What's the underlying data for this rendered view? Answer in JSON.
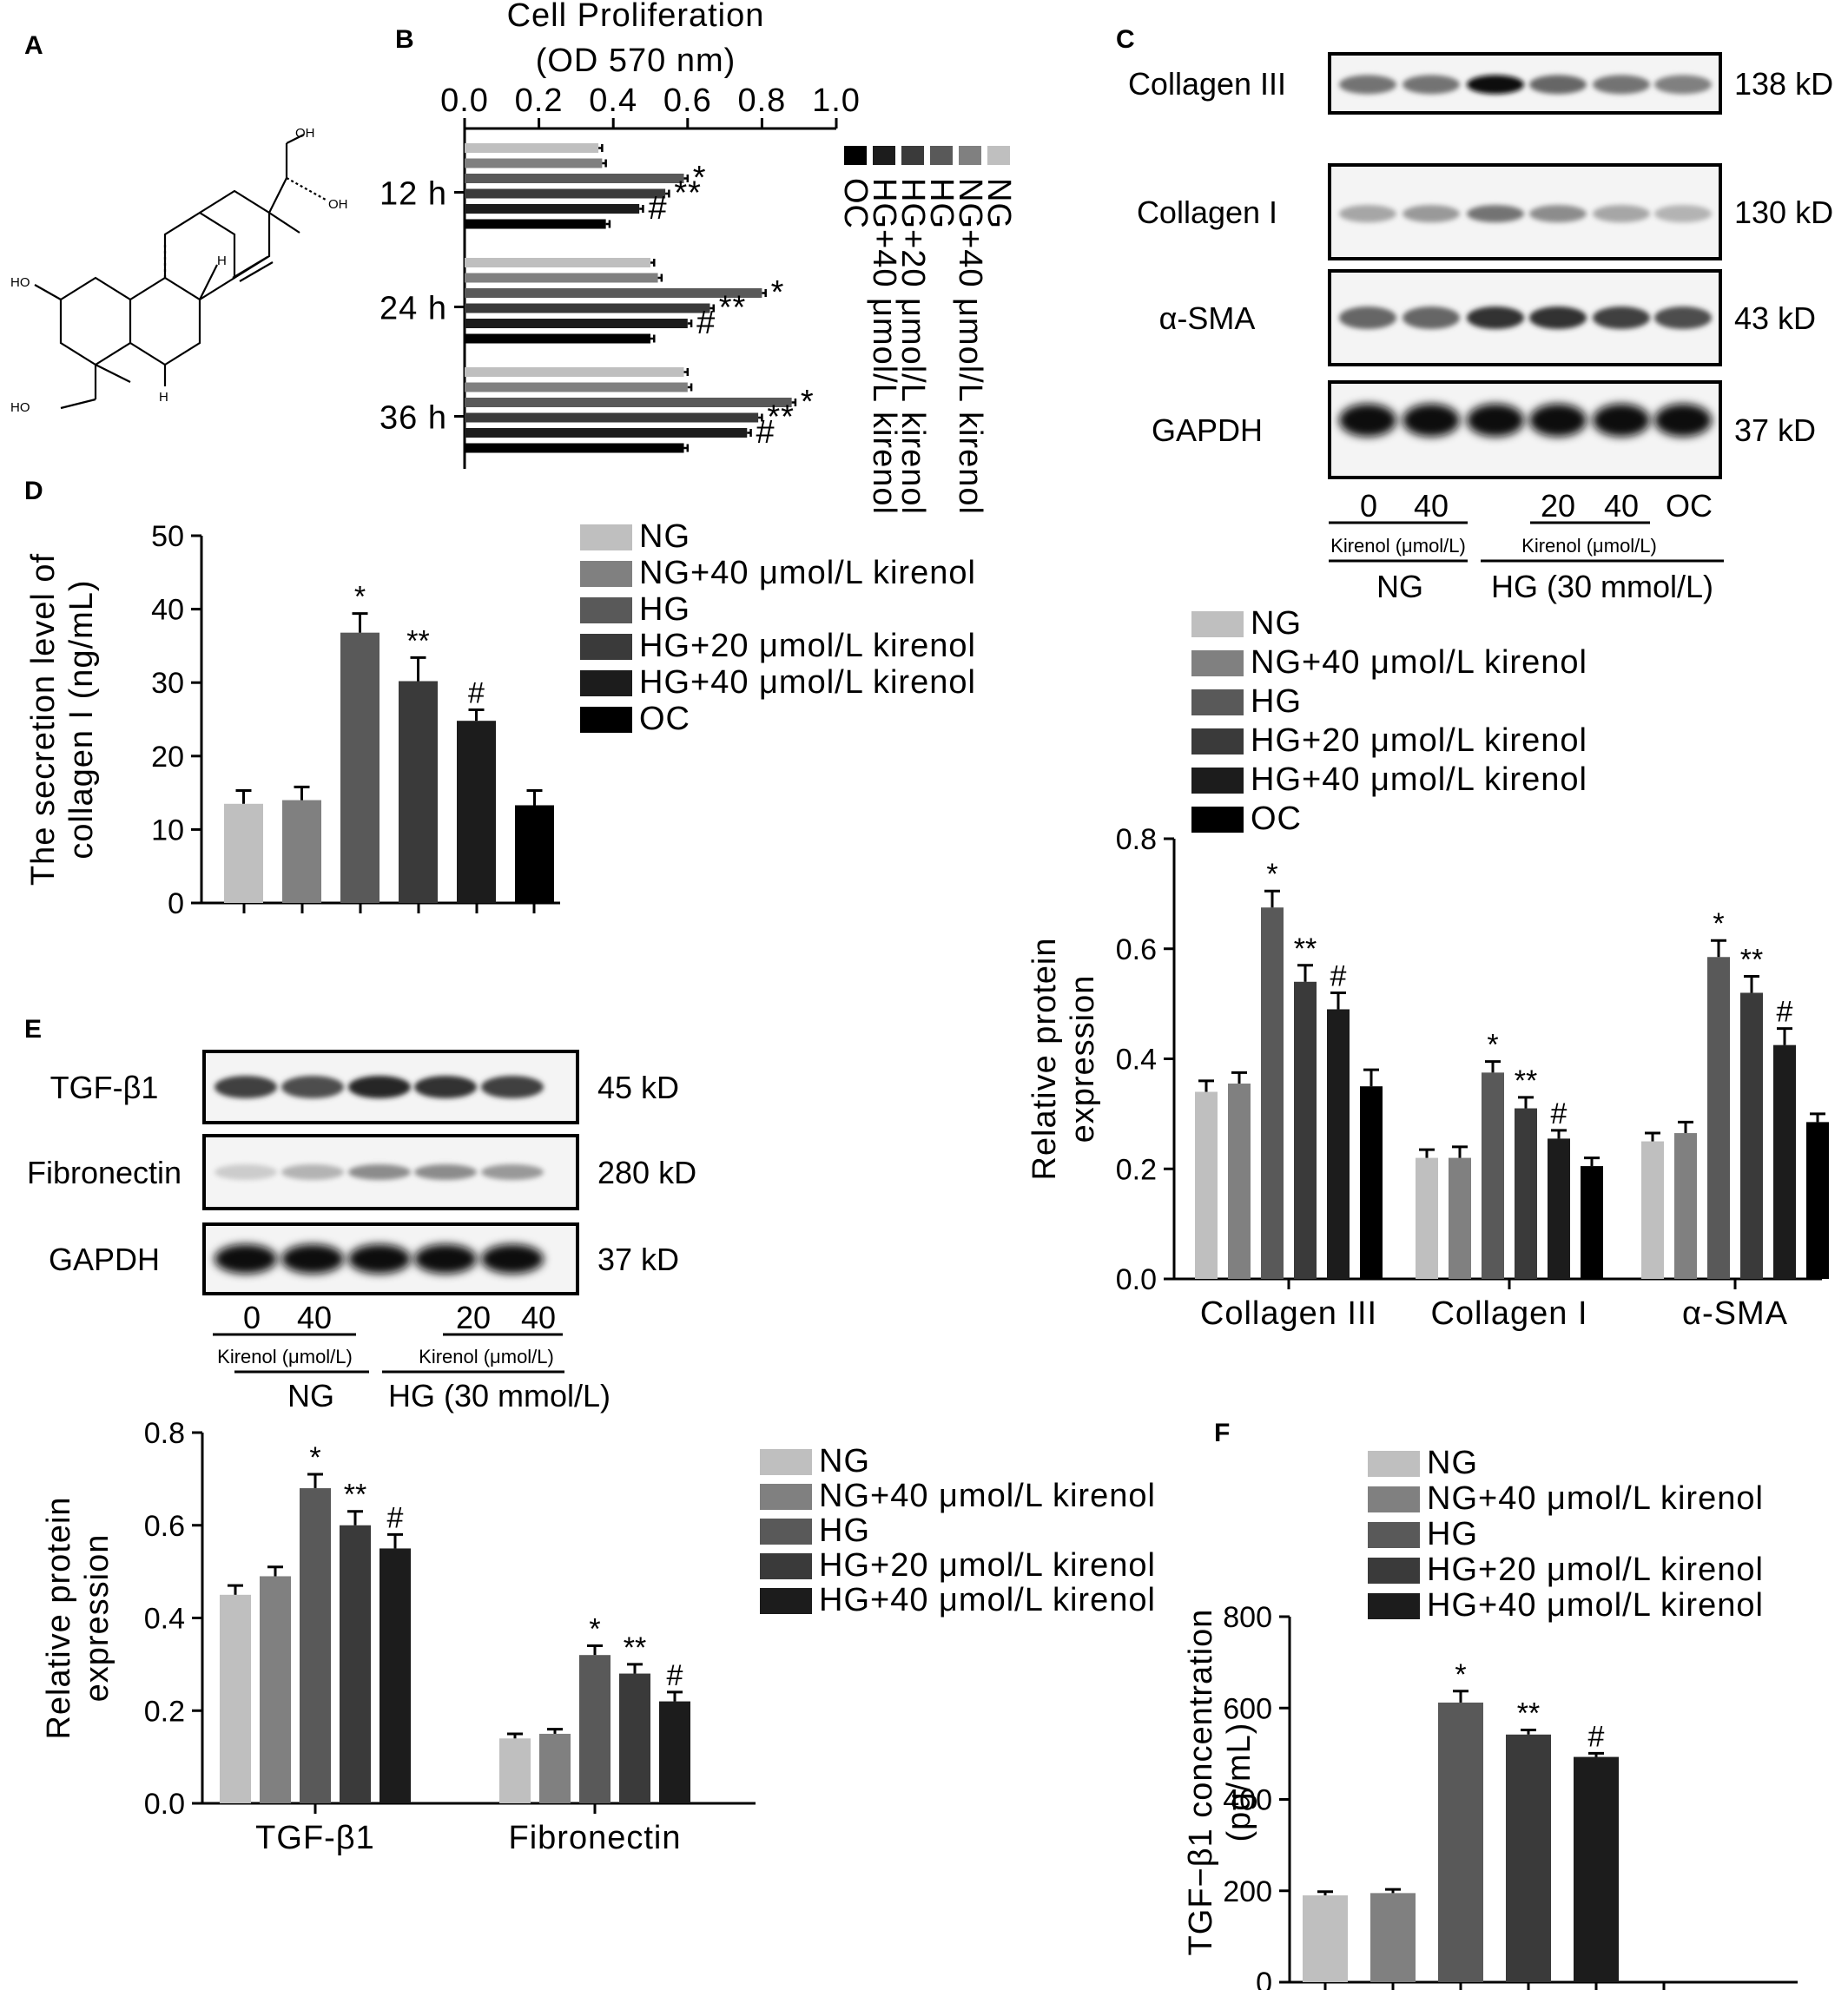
{
  "figure": {
    "colors": {
      "NG": "#bfbfbf",
      "NG+40 μmol/L kirenol": "#808080",
      "HG": "#595959",
      "HG+20 μmol/L kirenol": "#3a3a3a",
      "HG+40 μmol/L kirenol": "#1c1c1c",
      "OC": "#000000"
    },
    "panel_A": {
      "letter": "A",
      "atoms": {
        "oh1": "OH",
        "oh2": "OH",
        "ho1": "HO",
        "ho2": "HO",
        "h1": "H",
        "h2": "H"
      }
    },
    "panel_C": {
      "letter": "C",
      "blot_rows": [
        {
          "protein": "Collagen III",
          "size": "138 kD"
        },
        {
          "protein": "Collagen I",
          "size": "130 kD"
        },
        {
          "protein": "α-SMA",
          "size": "43 kD"
        },
        {
          "protein": "GAPDH",
          "size": "37 kD"
        }
      ],
      "lane_labels": [
        "0",
        "40",
        "20",
        "40",
        "OC"
      ],
      "kirenol_label": "Kirenol (μmol/L)",
      "ng_label": "NG",
      "hg_label": "HG (30 mmol/L)"
    },
    "panel_E_blot": {
      "letter": "E",
      "blot_rows": [
        {
          "protein": "TGF-β1",
          "size": "45 kD"
        },
        {
          "protein": "Fibronectin",
          "size": "280 kD"
        },
        {
          "protein": "GAPDH",
          "size": "37 kD"
        }
      ],
      "lane_labels": [
        "0",
        "40",
        "20",
        "40"
      ],
      "kirenol_label": "Kirenol (μmol/L)",
      "ng_label": "NG",
      "hg_label": "HG (30 mmol/L)"
    },
    "panel_F_letter": "F"
  },
  "chart_data": [
    {
      "id": "B",
      "letter": "B",
      "type": "bar",
      "orientation": "horizontal",
      "title": "Cell Proliferation",
      "subtitle": "(OD 570 nm)",
      "xlim": [
        0,
        1.0
      ],
      "ticks": [
        "0.0",
        "0.2",
        "0.4",
        "0.6",
        "0.8",
        "1.0"
      ],
      "tick_values": [
        0,
        0.2,
        0.4,
        0.6,
        0.8,
        1.0
      ],
      "categories": [
        "12 h",
        "24 h",
        "36 h"
      ],
      "series": [
        {
          "name": "NG",
          "values": [
            0.36,
            0.5,
            0.59
          ],
          "errors": [
            0.01,
            0.01,
            0.01
          ]
        },
        {
          "name": "NG+40 μmol/L kirenol",
          "values": [
            0.37,
            0.52,
            0.6
          ],
          "errors": [
            0.01,
            0.01,
            0.01
          ]
        },
        {
          "name": "HG",
          "values": [
            0.59,
            0.8,
            0.88
          ],
          "errors": [
            0.01,
            0.01,
            0.01
          ]
        },
        {
          "name": "HG+20 μmol/L kirenol",
          "values": [
            0.54,
            0.66,
            0.79
          ],
          "errors": [
            0.01,
            0.01,
            0.01
          ]
        },
        {
          "name": "HG+40 μmol/L kirenol",
          "values": [
            0.47,
            0.6,
            0.76
          ],
          "errors": [
            0.01,
            0.01,
            0.01
          ]
        },
        {
          "name": "OC",
          "values": [
            0.38,
            0.5,
            0.59
          ],
          "errors": [
            0.01,
            0.01,
            0.01
          ]
        }
      ],
      "annotations": [
        {
          "category": 0,
          "series": 2,
          "text": "*"
        },
        {
          "category": 0,
          "series": 3,
          "text": "**"
        },
        {
          "category": 0,
          "series": 4,
          "text": "#"
        },
        {
          "category": 1,
          "series": 2,
          "text": "*"
        },
        {
          "category": 1,
          "series": 3,
          "text": "**"
        },
        {
          "category": 1,
          "series": 4,
          "text": "#"
        },
        {
          "category": 2,
          "series": 2,
          "text": "*"
        },
        {
          "category": 2,
          "series": 3,
          "text": "**"
        },
        {
          "category": 2,
          "series": 4,
          "text": "#"
        }
      ],
      "legend": [
        "OC",
        "HG+40 μmol/L kirenol",
        "HG+20 μmol/L kirenol",
        "HG",
        "NG+40 μmol/L kirenol",
        "NG"
      ]
    },
    {
      "id": "D",
      "letter": "D",
      "type": "bar",
      "ylabel_line1": "The secretion level of",
      "ylabel_line2": "collagen I (ng/mL)",
      "ylim": [
        0,
        50
      ],
      "ticks": [
        "0",
        "10",
        "20",
        "30",
        "40",
        "50"
      ],
      "tick_values": [
        0,
        10,
        20,
        30,
        40,
        50
      ],
      "categories": [
        ""
      ],
      "series": [
        {
          "name": "NG",
          "values": [
            13.5
          ],
          "errors": [
            1.8
          ]
        },
        {
          "name": "NG+40 μmol/L kirenol",
          "values": [
            14.0
          ],
          "errors": [
            1.8
          ]
        },
        {
          "name": "HG",
          "values": [
            36.8
          ],
          "errors": [
            2.6
          ]
        },
        {
          "name": "HG+20 μmol/L kirenol",
          "values": [
            30.2
          ],
          "errors": [
            3.2
          ]
        },
        {
          "name": "HG+40 μmol/L kirenol",
          "values": [
            24.8
          ],
          "errors": [
            1.5
          ]
        },
        {
          "name": "OC",
          "values": [
            13.3
          ],
          "errors": [
            2.0
          ]
        }
      ],
      "annotations": [
        {
          "category": 0,
          "series": 2,
          "text": "*"
        },
        {
          "category": 0,
          "series": 3,
          "text": "**"
        },
        {
          "category": 0,
          "series": 4,
          "text": "#"
        }
      ],
      "legend": [
        "NG",
        "NG+40 μmol/L kirenol",
        "HG",
        "HG+20 μmol/L kirenol",
        "HG+40 μmol/L kirenol",
        "OC"
      ]
    },
    {
      "id": "C_chart",
      "type": "bar",
      "ylabel_line1": "Relative protein",
      "ylabel_line2": "expression",
      "ylim": [
        0,
        0.8
      ],
      "ticks": [
        "0.0",
        "0.2",
        "0.4",
        "0.6",
        "0.8"
      ],
      "tick_values": [
        0,
        0.2,
        0.4,
        0.6,
        0.8
      ],
      "categories": [
        "Collagen III",
        "Collagen I",
        "α-SMA"
      ],
      "series": [
        {
          "name": "NG",
          "values": [
            0.34,
            0.22,
            0.25
          ],
          "errors": [
            0.02,
            0.015,
            0.015
          ]
        },
        {
          "name": "NG+40 μmol/L kirenol",
          "values": [
            0.355,
            0.22,
            0.265
          ],
          "errors": [
            0.02,
            0.02,
            0.02
          ]
        },
        {
          "name": "HG",
          "values": [
            0.675,
            0.375,
            0.585
          ],
          "errors": [
            0.03,
            0.02,
            0.03
          ]
        },
        {
          "name": "HG+20 μmol/L kirenol",
          "values": [
            0.54,
            0.31,
            0.52
          ],
          "errors": [
            0.03,
            0.02,
            0.03
          ]
        },
        {
          "name": "HG+40 μmol/L kirenol",
          "values": [
            0.49,
            0.255,
            0.425
          ],
          "errors": [
            0.03,
            0.015,
            0.03
          ]
        },
        {
          "name": "OC",
          "values": [
            0.35,
            0.205,
            0.285
          ],
          "errors": [
            0.03,
            0.015,
            0.015
          ]
        }
      ],
      "annotations": [
        {
          "category": 0,
          "series": 2,
          "text": "*"
        },
        {
          "category": 0,
          "series": 3,
          "text": "**"
        },
        {
          "category": 0,
          "series": 4,
          "text": "#"
        },
        {
          "category": 1,
          "series": 2,
          "text": "*"
        },
        {
          "category": 1,
          "series": 3,
          "text": "**"
        },
        {
          "category": 1,
          "series": 4,
          "text": "#"
        },
        {
          "category": 2,
          "series": 2,
          "text": "*"
        },
        {
          "category": 2,
          "series": 3,
          "text": "**"
        },
        {
          "category": 2,
          "series": 4,
          "text": "#"
        }
      ],
      "legend": [
        "NG",
        "NG+40 μmol/L kirenol",
        "HG",
        "HG+20 μmol/L kirenol",
        "HG+40 μmol/L kirenol",
        "OC"
      ]
    },
    {
      "id": "E_chart",
      "type": "bar",
      "ylabel_line1": "Relative protein",
      "ylabel_line2": "expression",
      "ylim": [
        0,
        0.8
      ],
      "ticks": [
        "0.0",
        "0.2",
        "0.4",
        "0.6",
        "0.8"
      ],
      "tick_values": [
        0,
        0.2,
        0.4,
        0.6,
        0.8
      ],
      "categories": [
        "TGF-β1",
        "Fibronectin"
      ],
      "series": [
        {
          "name": "NG",
          "values": [
            0.45,
            0.14
          ],
          "errors": [
            0.02,
            0.01
          ]
        },
        {
          "name": "NG+40 μmol/L kirenol",
          "values": [
            0.49,
            0.15
          ],
          "errors": [
            0.02,
            0.01
          ]
        },
        {
          "name": "HG",
          "values": [
            0.68,
            0.32
          ],
          "errors": [
            0.03,
            0.02
          ]
        },
        {
          "name": "HG+20 μmol/L kirenol",
          "values": [
            0.6,
            0.28
          ],
          "errors": [
            0.03,
            0.02
          ]
        },
        {
          "name": "HG+40 μmol/L kirenol",
          "values": [
            0.55,
            0.22
          ],
          "errors": [
            0.03,
            0.02
          ]
        }
      ],
      "annotations": [
        {
          "category": 0,
          "series": 2,
          "text": "*"
        },
        {
          "category": 0,
          "series": 3,
          "text": "**"
        },
        {
          "category": 0,
          "series": 4,
          "text": "#"
        },
        {
          "category": 1,
          "series": 2,
          "text": "*"
        },
        {
          "category": 1,
          "series": 3,
          "text": "**"
        },
        {
          "category": 1,
          "series": 4,
          "text": "#"
        }
      ],
      "legend": [
        "NG",
        "NG+40 μmol/L kirenol",
        "HG",
        "HG+20 μmol/L kirenol",
        "HG+40 μmol/L kirenol"
      ]
    },
    {
      "id": "F",
      "letter": "F",
      "type": "bar",
      "ylabel_line1": "TGF−β1 concentration",
      "ylabel_line2": "(pg/mL)",
      "ylim": [
        0,
        800
      ],
      "ticks": [
        "0",
        "200",
        "400",
        "600",
        "800"
      ],
      "tick_values": [
        0,
        200,
        400,
        600,
        800
      ],
      "categories": [
        ""
      ],
      "series": [
        {
          "name": "NG",
          "values": [
            190
          ],
          "errors": [
            8
          ]
        },
        {
          "name": "NG+40 μmol/L kirenol",
          "values": [
            195
          ],
          "errors": [
            8
          ]
        },
        {
          "name": "HG",
          "values": [
            612
          ],
          "errors": [
            25
          ]
        },
        {
          "name": "HG+20 μmol/L kirenol",
          "values": [
            542
          ],
          "errors": [
            10
          ]
        },
        {
          "name": "HG+40 μmol/L kirenol",
          "values": [
            493
          ],
          "errors": [
            8
          ]
        }
      ],
      "annotations": [
        {
          "category": 0,
          "series": 2,
          "text": "*"
        },
        {
          "category": 0,
          "series": 3,
          "text": "**"
        },
        {
          "category": 0,
          "series": 4,
          "text": "#"
        }
      ],
      "legend": [
        "NG",
        "NG+40 μmol/L kirenol",
        "HG",
        "HG+20 μmol/L kirenol",
        "HG+40 μmol/L kirenol"
      ]
    }
  ]
}
